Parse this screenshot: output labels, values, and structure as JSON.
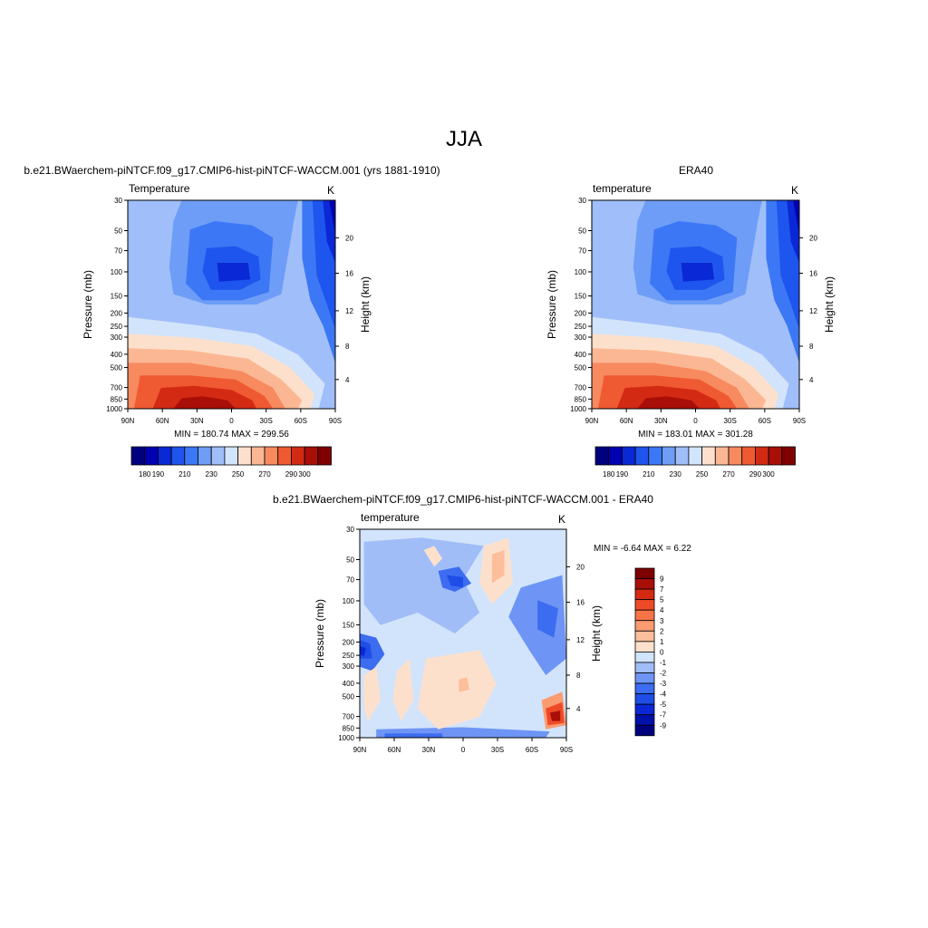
{
  "page_title": "JJA",
  "colors": {
    "scale14": [
      "#00007f",
      "#0000b2",
      "#0a28d6",
      "#1e55ee",
      "#3c78f5",
      "#6e9df8",
      "#a0bef9",
      "#d2e4fb",
      "#fde0cc",
      "#fbb793",
      "#f88a5f",
      "#ef5a32",
      "#d32a14",
      "#a90e08",
      "#7f0000"
    ],
    "diff16": [
      "#00007f",
      "#0011aa",
      "#0a28d6",
      "#1e4ee6",
      "#3c6cf0",
      "#6e95f5",
      "#a0bdf8",
      "#d2e4fb",
      "#fde0cc",
      "#fdbe9b",
      "#fb9b71",
      "#f87448",
      "#ef4a28",
      "#d52a12",
      "#a90e08",
      "#7f0000"
    ]
  },
  "chart_data": [
    {
      "type": "heatmap",
      "title": "b.e21.BWaerchem-piNTCF.f09_g17.CMIP6-hist-piNTCF-WACCM.001 (yrs 1881-1910)",
      "left_label": "Temperature",
      "right_label": "K",
      "xlabel": "",
      "ylabel": "Pressure (mb)",
      "y2label": "Height (km)",
      "x_ticks": [
        "90N",
        "60N",
        "30N",
        "0",
        "30S",
        "60S",
        "90S"
      ],
      "y_ticks": [
        30,
        50,
        70,
        100,
        150,
        200,
        250,
        300,
        400,
        500,
        700,
        850,
        1000
      ],
      "y2_ticks": [
        4,
        8,
        12,
        16,
        20
      ],
      "y_scale": "log",
      "stats": "MIN = 180.74  MAX = 299.56",
      "legend_labels": [
        "180",
        "190",
        "210",
        "230",
        "250",
        "270",
        "290",
        "300"
      ],
      "legend_placement": "bottom"
    },
    {
      "type": "heatmap",
      "title": "ERA40",
      "left_label": "temperature",
      "right_label": "K",
      "xlabel": "",
      "ylabel": "Pressure (mb)",
      "y2label": "Height (km)",
      "x_ticks": [
        "90N",
        "60N",
        "30N",
        "0",
        "30S",
        "60S",
        "90S"
      ],
      "y_ticks": [
        30,
        50,
        70,
        100,
        150,
        200,
        250,
        300,
        400,
        500,
        700,
        850,
        1000
      ],
      "y2_ticks": [
        4,
        8,
        12,
        16,
        20
      ],
      "y_scale": "log",
      "stats": "MIN = 183.01  MAX = 301.28",
      "legend_labels": [
        "180",
        "190",
        "210",
        "230",
        "250",
        "270",
        "290",
        "300"
      ],
      "legend_placement": "bottom"
    },
    {
      "type": "heatmap",
      "title": "b.e21.BWaerchem-piNTCF.f09_g17.CMIP6-hist-piNTCF-WACCM.001 - ERA40",
      "left_label": "temperature",
      "right_label": "K",
      "xlabel": "",
      "ylabel": "Pressure (mb)",
      "y2label": "Height (km)",
      "x_ticks": [
        "90N",
        "60N",
        "30N",
        "0",
        "30S",
        "60S",
        "90S"
      ],
      "y_ticks": [
        30,
        50,
        70,
        100,
        150,
        200,
        250,
        300,
        400,
        500,
        700,
        850,
        1000
      ],
      "y2_ticks": [
        4,
        8,
        12,
        16,
        20
      ],
      "y_scale": "log",
      "stats": "MIN =  -6.64  MAX =   6.22",
      "legend_labels": [
        "9",
        "7",
        "5",
        "4",
        "3",
        "2",
        "1",
        "0",
        "-1",
        "-2",
        "-3",
        "-4",
        "-5",
        "-7",
        "-9"
      ],
      "legend_placement": "right"
    }
  ]
}
